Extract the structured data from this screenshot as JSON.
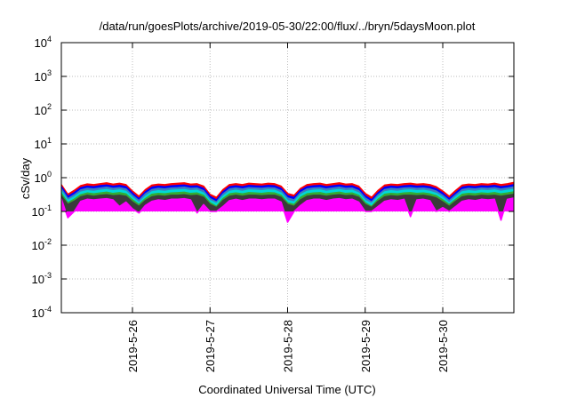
{
  "chart_data": {
    "type": "area",
    "title": "/data/run/goesPlots/archive/2019-05-30/22:00/flux/../bryn/5daysMoon.plot",
    "xlabel": "Coordinated Universal Time (UTC)",
    "ylabel": "cSv/day",
    "yscale": "log",
    "ylim": [
      0.0001,
      10000
    ],
    "y_ticks": [
      {
        "value": 0.0001,
        "base": "10",
        "exp": "-4"
      },
      {
        "value": 0.001,
        "base": "10",
        "exp": "-3"
      },
      {
        "value": 0.01,
        "base": "10",
        "exp": "-2"
      },
      {
        "value": 0.1,
        "base": "10",
        "exp": "-1"
      },
      {
        "value": 1,
        "base": "10",
        "exp": "0"
      },
      {
        "value": 10,
        "base": "10",
        "exp": "1"
      },
      {
        "value": 100,
        "base": "10",
        "exp": "2"
      },
      {
        "value": 1000,
        "base": "10",
        "exp": "3"
      },
      {
        "value": 10000,
        "base": "10",
        "exp": "4"
      }
    ],
    "xlim": [
      "2019-05-25T02:00",
      "2019-05-30T22:00"
    ],
    "x_ticks": [
      "2019-5-26",
      "2019-5-27",
      "2019-5-28",
      "2019-5-29",
      "2019-5-30"
    ],
    "x_tick_dates": [
      "2019-05-26T00:00",
      "2019-05-27T00:00",
      "2019-05-28T00:00",
      "2019-05-29T00:00",
      "2019-05-30T00:00"
    ],
    "grid": true,
    "legend": "none",
    "x": [
      "2019-05-25T02:00",
      "2019-05-25T04:00",
      "2019-05-25T06:00",
      "2019-05-25T08:00",
      "2019-05-25T10:00",
      "2019-05-25T12:00",
      "2019-05-25T14:00",
      "2019-05-25T16:00",
      "2019-05-25T18:00",
      "2019-05-25T20:00",
      "2019-05-25T22:00",
      "2019-05-26T00:00",
      "2019-05-26T02:00",
      "2019-05-26T04:00",
      "2019-05-26T06:00",
      "2019-05-26T08:00",
      "2019-05-26T10:00",
      "2019-05-26T12:00",
      "2019-05-26T14:00",
      "2019-05-26T16:00",
      "2019-05-26T18:00",
      "2019-05-26T20:00",
      "2019-05-26T22:00",
      "2019-05-27T00:00",
      "2019-05-27T02:00",
      "2019-05-27T04:00",
      "2019-05-27T06:00",
      "2019-05-27T08:00",
      "2019-05-27T10:00",
      "2019-05-27T12:00",
      "2019-05-27T14:00",
      "2019-05-27T16:00",
      "2019-05-27T18:00",
      "2019-05-27T20:00",
      "2019-05-27T22:00",
      "2019-05-28T00:00",
      "2019-05-28T02:00",
      "2019-05-28T04:00",
      "2019-05-28T06:00",
      "2019-05-28T08:00",
      "2019-05-28T10:00",
      "2019-05-28T12:00",
      "2019-05-28T14:00",
      "2019-05-28T16:00",
      "2019-05-28T18:00",
      "2019-05-28T20:00",
      "2019-05-28T22:00",
      "2019-05-29T00:00",
      "2019-05-29T02:00",
      "2019-05-29T04:00",
      "2019-05-29T06:00",
      "2019-05-29T08:00",
      "2019-05-29T10:00",
      "2019-05-29T12:00",
      "2019-05-29T14:00",
      "2019-05-29T16:00",
      "2019-05-29T18:00",
      "2019-05-29T20:00",
      "2019-05-29T22:00",
      "2019-05-30T00:00",
      "2019-05-30T02:00",
      "2019-05-30T04:00",
      "2019-05-30T06:00",
      "2019-05-30T08:00",
      "2019-05-30T10:00",
      "2019-05-30T12:00",
      "2019-05-30T14:00",
      "2019-05-30T16:00",
      "2019-05-30T18:00",
      "2019-05-30T20:00",
      "2019-05-30T22:00"
    ],
    "series": [
      {
        "color": "#ff0000",
        "values": [
          0.62,
          0.32,
          0.42,
          0.58,
          0.65,
          0.62,
          0.66,
          0.7,
          0.64,
          0.68,
          0.62,
          0.4,
          0.28,
          0.44,
          0.6,
          0.64,
          0.62,
          0.66,
          0.68,
          0.7,
          0.64,
          0.66,
          0.56,
          0.32,
          0.26,
          0.44,
          0.62,
          0.66,
          0.62,
          0.68,
          0.66,
          0.64,
          0.68,
          0.66,
          0.56,
          0.34,
          0.3,
          0.48,
          0.62,
          0.66,
          0.68,
          0.62,
          0.66,
          0.7,
          0.64,
          0.66,
          0.56,
          0.34,
          0.26,
          0.42,
          0.6,
          0.64,
          0.62,
          0.66,
          0.68,
          0.64,
          0.66,
          0.62,
          0.54,
          0.4,
          0.28,
          0.42,
          0.6,
          0.64,
          0.62,
          0.66,
          0.64,
          0.68,
          0.62,
          0.66,
          0.72
        ]
      },
      {
        "color": "#0000ff",
        "values": [
          0.55,
          0.28,
          0.36,
          0.5,
          0.56,
          0.54,
          0.58,
          0.6,
          0.56,
          0.59,
          0.54,
          0.35,
          0.24,
          0.38,
          0.52,
          0.56,
          0.54,
          0.57,
          0.59,
          0.6,
          0.56,
          0.57,
          0.48,
          0.28,
          0.22,
          0.38,
          0.54,
          0.57,
          0.54,
          0.59,
          0.57,
          0.56,
          0.59,
          0.57,
          0.48,
          0.29,
          0.26,
          0.42,
          0.54,
          0.57,
          0.59,
          0.54,
          0.57,
          0.6,
          0.56,
          0.57,
          0.48,
          0.29,
          0.22,
          0.36,
          0.52,
          0.56,
          0.54,
          0.57,
          0.59,
          0.56,
          0.57,
          0.54,
          0.47,
          0.35,
          0.24,
          0.36,
          0.52,
          0.56,
          0.54,
          0.57,
          0.56,
          0.59,
          0.54,
          0.57,
          0.62
        ]
      },
      {
        "color": "#3c7dbf",
        "values": [
          0.47,
          0.24,
          0.31,
          0.43,
          0.48,
          0.46,
          0.49,
          0.52,
          0.48,
          0.5,
          0.46,
          0.3,
          0.21,
          0.33,
          0.44,
          0.48,
          0.46,
          0.49,
          0.5,
          0.52,
          0.48,
          0.49,
          0.41,
          0.24,
          0.19,
          0.33,
          0.46,
          0.49,
          0.46,
          0.5,
          0.49,
          0.48,
          0.5,
          0.49,
          0.41,
          0.25,
          0.22,
          0.36,
          0.46,
          0.49,
          0.5,
          0.46,
          0.49,
          0.52,
          0.48,
          0.49,
          0.41,
          0.25,
          0.19,
          0.31,
          0.44,
          0.48,
          0.46,
          0.49,
          0.5,
          0.48,
          0.49,
          0.46,
          0.4,
          0.3,
          0.21,
          0.31,
          0.44,
          0.48,
          0.46,
          0.49,
          0.48,
          0.5,
          0.46,
          0.49,
          0.53
        ]
      },
      {
        "color": "#00d8d8",
        "values": [
          0.4,
          0.21,
          0.27,
          0.37,
          0.41,
          0.39,
          0.42,
          0.44,
          0.41,
          0.43,
          0.39,
          0.26,
          0.18,
          0.28,
          0.38,
          0.41,
          0.39,
          0.42,
          0.43,
          0.44,
          0.41,
          0.42,
          0.35,
          0.21,
          0.17,
          0.28,
          0.39,
          0.42,
          0.39,
          0.43,
          0.42,
          0.41,
          0.43,
          0.42,
          0.35,
          0.21,
          0.19,
          0.31,
          0.39,
          0.42,
          0.43,
          0.39,
          0.42,
          0.44,
          0.41,
          0.42,
          0.35,
          0.21,
          0.17,
          0.27,
          0.38,
          0.41,
          0.39,
          0.42,
          0.43,
          0.41,
          0.42,
          0.39,
          0.34,
          0.26,
          0.18,
          0.27,
          0.38,
          0.41,
          0.39,
          0.42,
          0.41,
          0.43,
          0.39,
          0.42,
          0.45
        ]
      },
      {
        "color": "#33ad33",
        "values": [
          0.34,
          0.18,
          0.23,
          0.31,
          0.35,
          0.33,
          0.35,
          0.37,
          0.34,
          0.36,
          0.33,
          0.22,
          0.16,
          0.24,
          0.32,
          0.34,
          0.33,
          0.35,
          0.36,
          0.37,
          0.34,
          0.35,
          0.3,
          0.18,
          0.14,
          0.24,
          0.33,
          0.35,
          0.33,
          0.36,
          0.35,
          0.34,
          0.36,
          0.35,
          0.3,
          0.18,
          0.16,
          0.26,
          0.33,
          0.35,
          0.36,
          0.33,
          0.35,
          0.37,
          0.34,
          0.35,
          0.3,
          0.18,
          0.14,
          0.23,
          0.32,
          0.34,
          0.33,
          0.35,
          0.36,
          0.34,
          0.35,
          0.33,
          0.29,
          0.22,
          0.16,
          0.23,
          0.32,
          0.34,
          0.33,
          0.35,
          0.34,
          0.36,
          0.33,
          0.35,
          0.38
        ]
      },
      {
        "color": "#3a3a3a",
        "values": [
          0.29,
          0.16,
          0.2,
          0.27,
          0.3,
          0.28,
          0.3,
          0.31,
          0.29,
          0.3,
          0.28,
          0.19,
          0.14,
          0.21,
          0.27,
          0.29,
          0.28,
          0.3,
          0.3,
          0.31,
          0.29,
          0.3,
          0.26,
          0.16,
          0.13,
          0.21,
          0.28,
          0.3,
          0.28,
          0.3,
          0.3,
          0.29,
          0.3,
          0.3,
          0.26,
          0.16,
          0.14,
          0.22,
          0.28,
          0.3,
          0.3,
          0.28,
          0.3,
          0.31,
          0.29,
          0.3,
          0.26,
          0.16,
          0.13,
          0.2,
          0.27,
          0.29,
          0.28,
          0.3,
          0.3,
          0.29,
          0.3,
          0.28,
          0.25,
          0.19,
          0.14,
          0.2,
          0.27,
          0.29,
          0.28,
          0.3,
          0.29,
          0.3,
          0.28,
          0.3,
          0.32
        ]
      },
      {
        "color": "#ff00ff",
        "values": [
          0.24,
          0.065,
          0.1,
          0.2,
          0.23,
          0.22,
          0.23,
          0.24,
          0.22,
          0.14,
          0.19,
          0.12,
          0.09,
          0.15,
          0.2,
          0.22,
          0.21,
          0.23,
          0.23,
          0.24,
          0.22,
          0.09,
          0.16,
          0.1,
          0.1,
          0.14,
          0.21,
          0.23,
          0.21,
          0.23,
          0.23,
          0.22,
          0.23,
          0.23,
          0.19,
          0.048,
          0.1,
          0.15,
          0.21,
          0.23,
          0.23,
          0.21,
          0.23,
          0.24,
          0.22,
          0.23,
          0.19,
          0.1,
          0.1,
          0.14,
          0.2,
          0.22,
          0.21,
          0.23,
          0.07,
          0.22,
          0.23,
          0.21,
          0.1,
          0.13,
          0.1,
          0.14,
          0.2,
          0.22,
          0.21,
          0.23,
          0.22,
          0.23,
          0.055,
          0.23,
          0.25
        ]
      }
    ]
  }
}
